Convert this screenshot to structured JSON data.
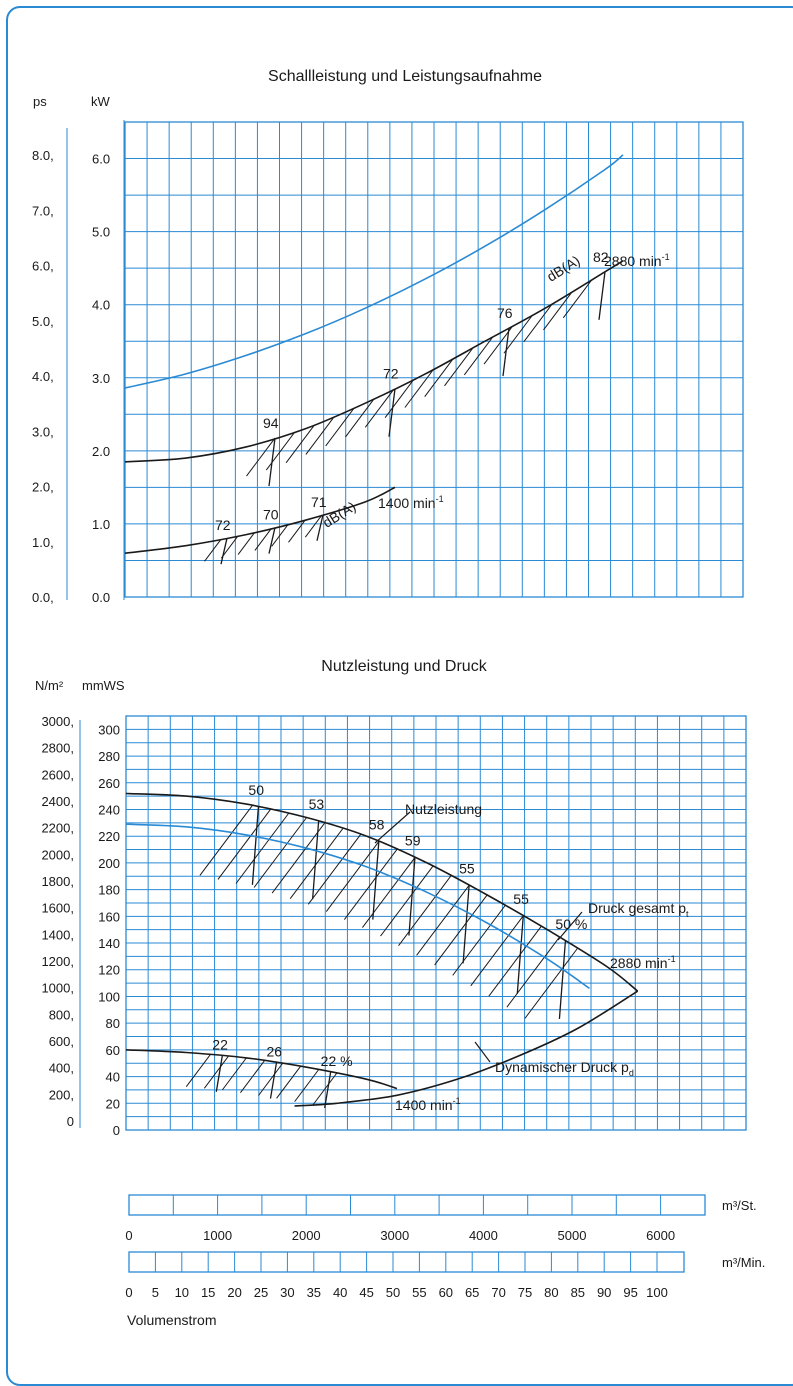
{
  "colors": {
    "grid": "#2a8ad4",
    "curve_black": "#1a1a1a",
    "curve_blue": "#2a8ad4",
    "frame": "#2a8ad4"
  },
  "chart_data": [
    {
      "type": "line",
      "title": "Schallleistung und Leistungsaufnahme",
      "y_axis_outer": {
        "label": "ps",
        "ticks": [
          "8.0,",
          "7.0,",
          "6.0,",
          "5.0,",
          "4.0,",
          "3.0,",
          "2.0,",
          "1.0,",
          "0.0,"
        ]
      },
      "y_axis_inner": {
        "label": "kW",
        "ticks": [
          "6.0",
          "5.0",
          "4.0",
          "3.0",
          "2.0",
          "1.0",
          "0.0"
        ],
        "ylim": [
          0,
          6.5
        ]
      },
      "x_axis": {
        "unit": "m³/Min.",
        "xlim": [
          0,
          103
        ]
      },
      "grid": true,
      "series": [
        {
          "name": "",
          "color": "blue",
          "x": [
            0,
            10,
            20,
            30,
            40,
            50,
            60,
            70,
            80,
            83
          ],
          "y": [
            2.86,
            3.05,
            3.3,
            3.6,
            3.95,
            4.35,
            4.8,
            5.3,
            5.85,
            6.05
          ]
        },
        {
          "name": "2880 min⁻¹",
          "color": "black",
          "x": [
            0,
            10,
            20,
            30,
            40,
            50,
            60,
            70,
            80,
            83
          ],
          "y": [
            1.85,
            1.9,
            2.05,
            2.3,
            2.65,
            3.05,
            3.5,
            3.95,
            4.45,
            4.6
          ]
        },
        {
          "name": "1400 min⁻¹",
          "color": "black",
          "x": [
            0,
            10,
            20,
            30,
            40,
            45
          ],
          "y": [
            0.6,
            0.7,
            0.85,
            1.05,
            1.3,
            1.5
          ]
        }
      ],
      "sound_levels_2880": [
        {
          "label": "94",
          "x": 25
        },
        {
          "label": "72",
          "x": 45
        },
        {
          "label": "76",
          "x": 64
        },
        {
          "label": "82",
          "x": 80
        }
      ],
      "sound_levels_1400": [
        {
          "label": "72",
          "x": 17
        },
        {
          "label": "70",
          "x": 25
        },
        {
          "label": "71",
          "x": 33
        }
      ],
      "annotations": {
        "dba_top": "dB(A)",
        "dba_bottom": "dB(A)",
        "rpm_top": "2880 min",
        "rpm_bottom": "1400 min",
        "sup": "-1"
      }
    },
    {
      "type": "line",
      "title": "Nutzleistung und Druck",
      "y_axis_outer": {
        "label": "N/m²",
        "ticks": [
          "3000,",
          "2800,",
          "2600,",
          "2400,",
          "2200,",
          "2000,",
          "1800,",
          "1600,",
          "1400,",
          "1200,",
          "1000,",
          "800,",
          "600,",
          "400,",
          "200,",
          "0"
        ]
      },
      "y_axis_inner": {
        "label": "mmWS",
        "ticks": [
          "300",
          "280",
          "260",
          "240",
          "220",
          "200",
          "180",
          "160",
          "140",
          "120",
          "100",
          "80",
          "60",
          "40",
          "20",
          "0"
        ],
        "ylim": [
          0,
          310
        ]
      },
      "x_axis": {
        "unit": "m³/Min.",
        "xlim": [
          0,
          103
        ]
      },
      "grid": true,
      "series": [
        {
          "name": "Druck gesamt",
          "color": "black",
          "x": [
            0,
            10,
            20,
            30,
            40,
            50,
            60,
            70,
            80,
            85
          ],
          "y": [
            252,
            250,
            244,
            234,
            220,
            200,
            176,
            150,
            122,
            104
          ]
        },
        {
          "name": "",
          "color": "blue",
          "x": [
            0,
            10,
            20,
            30,
            40,
            50,
            60,
            70,
            77
          ],
          "y": [
            229,
            227,
            221,
            211,
            197,
            178,
            155,
            128,
            106
          ]
        },
        {
          "name": "2880 min⁻¹",
          "color": "black",
          "x": [
            28,
            35,
            45,
            55,
            65,
            75,
            85
          ],
          "y": [
            18,
            20,
            26,
            38,
            55,
            76,
            104
          ]
        },
        {
          "name": "1400 min⁻¹",
          "color": "black",
          "x": [
            0,
            10,
            20,
            30,
            40,
            45
          ],
          "y": [
            60,
            58,
            54,
            47,
            38,
            31
          ]
        }
      ],
      "efficiency_2880": [
        {
          "label": "50",
          "x": 22
        },
        {
          "label": "53",
          "x": 32
        },
        {
          "label": "58",
          "x": 42
        },
        {
          "label": "59",
          "x": 48
        },
        {
          "label": "55",
          "x": 57
        },
        {
          "label": "55",
          "x": 66
        },
        {
          "label": "50 %",
          "x": 73
        }
      ],
      "efficiency_1400": [
        {
          "label": "22",
          "x": 16
        },
        {
          "label": "26",
          "x": 25
        },
        {
          "label": "22 %",
          "x": 34
        }
      ],
      "annotations": {
        "nutzleistung": "Nutzleistung",
        "druck_gesamt": "Druck gesamt p",
        "druck_gesamt_sub": "t",
        "dynamischer": "Dynamischer Druck p",
        "dynamischer_sub": "d",
        "rpm_top": "2880 min",
        "rpm_bottom": "1400 min",
        "sup": "-1"
      }
    }
  ],
  "scales": {
    "m3_st": {
      "unit": "m³/St.",
      "ticks": [
        "0",
        "1000",
        "2000",
        "3000",
        "4000",
        "5000",
        "6000"
      ]
    },
    "m3_min": {
      "unit": "m³/Min.",
      "ticks": [
        "0",
        "5",
        "10",
        "15",
        "20",
        "25",
        "30",
        "35",
        "40",
        "45",
        "50",
        "55",
        "60",
        "65",
        "70",
        "75",
        "80",
        "85",
        "90",
        "95",
        "100"
      ]
    },
    "caption": "Volumenstrom"
  }
}
